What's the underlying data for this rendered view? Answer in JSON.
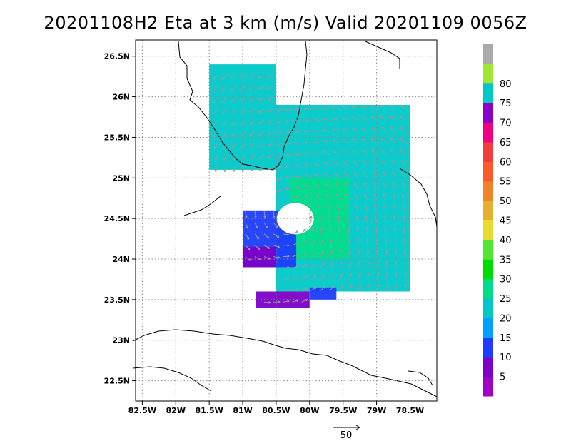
{
  "chart_data": {
    "type": "heatmap",
    "title": "20201108H2 Eta at 3 km (m/s) Valid 20201109 0056Z",
    "xlabel": "",
    "ylabel": "",
    "xlim": [
      -82.6,
      -78.1
    ],
    "ylim": [
      22.25,
      26.7
    ],
    "x_ticks": [
      -82.5,
      -82,
      -81.5,
      -81,
      -80.5,
      -80,
      -79.5,
      -79,
      -78.5
    ],
    "x_tick_labels": [
      "82.5W",
      "82W",
      "81.5W",
      "81W",
      "80.5W",
      "80W",
      "79.5W",
      "79W",
      "78.5W"
    ],
    "y_ticks": [
      22.5,
      23,
      23.5,
      24,
      24.5,
      25,
      25.5,
      26,
      26.5
    ],
    "y_tick_labels": [
      "22.5N",
      "23N",
      "23.5N",
      "24N",
      "24.5N",
      "25N",
      "25.5N",
      "26N",
      "26.5N"
    ],
    "grid": true,
    "colorbar": {
      "levels": [
        5,
        10,
        15,
        20,
        25,
        30,
        35,
        40,
        45,
        50,
        55,
        60,
        65,
        70,
        75,
        80
      ],
      "labels": [
        "5",
        "10",
        "15",
        "20",
        "25",
        "30",
        "35",
        "40",
        "45",
        "50",
        "55",
        "60",
        "65",
        "70",
        "75",
        "80"
      ],
      "colors": [
        "#a000c8",
        "#7d00c8",
        "#1e3cff",
        "#00a0ff",
        "#00c8c8",
        "#00dc8c",
        "#00dc00",
        "#50e632",
        "#e6dc32",
        "#e6af2d",
        "#f08228",
        "#fa5a28",
        "#f03c3c",
        "#f00082",
        "#8c00c8",
        "#00c8c8",
        "#a0e632",
        "#aaaaaa"
      ]
    },
    "vector_reference": {
      "label": "50",
      "value": 50
    },
    "storm_center": {
      "lon": -80.3,
      "lat": 24.55
    },
    "wind_regions": [
      {
        "level": 20,
        "lon": [
          -81.5,
          -80.5
        ],
        "lat": [
          25.1,
          26.4
        ]
      },
      {
        "level": 20,
        "lon": [
          -80.5,
          -78.5
        ],
        "lat": [
          23.6,
          25.9
        ]
      },
      {
        "level": 25,
        "lon": [
          -80.3,
          -79.4
        ],
        "lat": [
          24.0,
          25.0
        ]
      },
      {
        "level": 10,
        "lon": [
          -81.0,
          -80.2
        ],
        "lat": [
          23.9,
          24.6
        ]
      },
      {
        "level": 5,
        "lon": [
          -81.0,
          -80.5
        ],
        "lat": [
          23.9,
          24.15
        ]
      },
      {
        "level": 5,
        "lon": [
          -80.8,
          -80.0
        ],
        "lat": [
          23.4,
          23.6
        ]
      },
      {
        "level": 10,
        "lon": [
          -80.0,
          -79.6
        ],
        "lat": [
          23.5,
          23.65
        ]
      }
    ]
  }
}
